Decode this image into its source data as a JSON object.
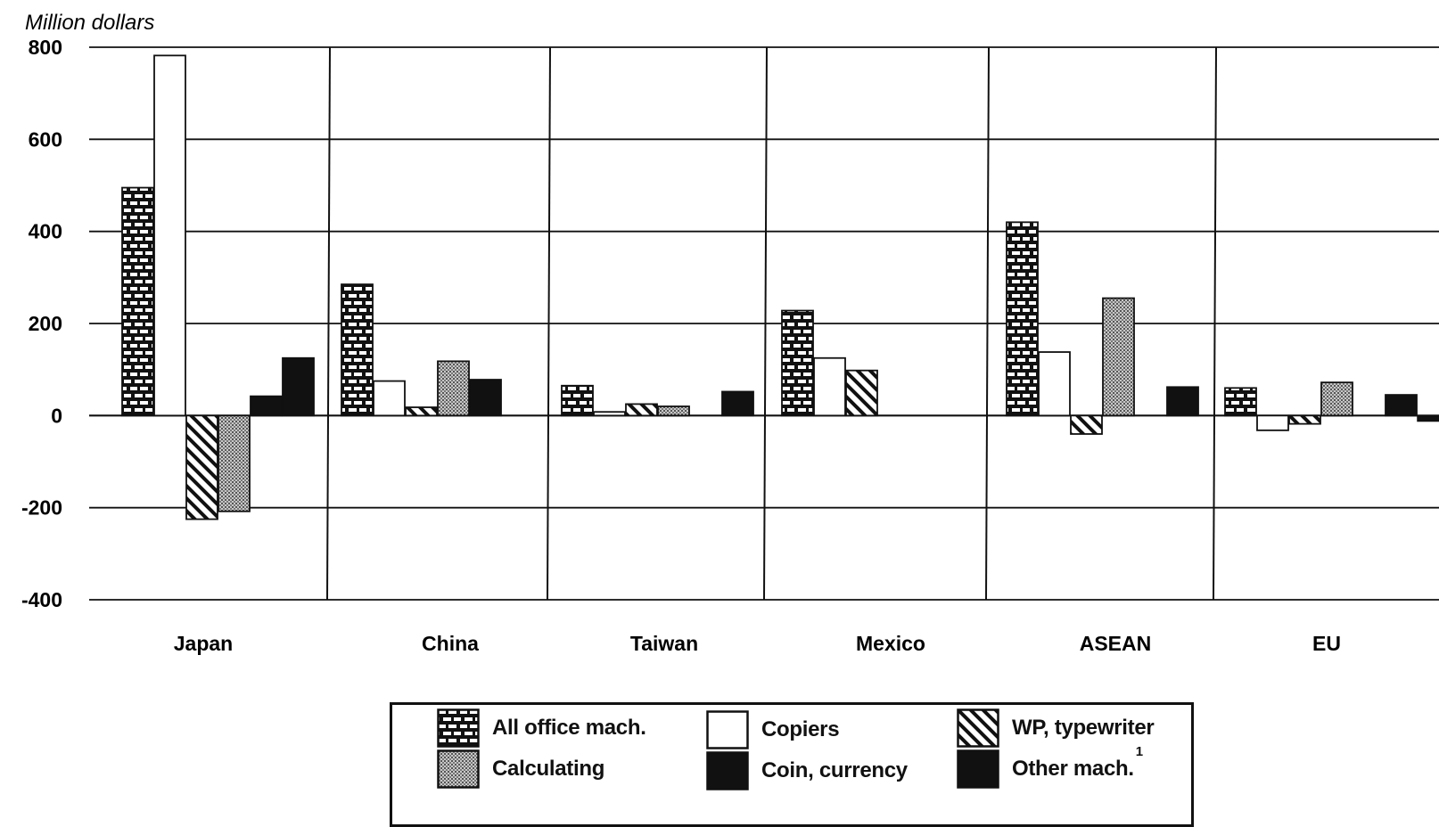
{
  "chart_data": {
    "type": "bar",
    "ylabel": "Million dollars",
    "ylim": [
      -400,
      800
    ],
    "yticks": [
      "800",
      "600",
      "400",
      "200",
      "0",
      "-200",
      "-400"
    ],
    "ytick_values": [
      800,
      600,
      400,
      200,
      0,
      -200,
      -400
    ],
    "grid": true,
    "legend_position": "bottom",
    "categories": [
      "Japan",
      "China",
      "Taiwan",
      "Mexico",
      "ASEAN",
      "EU"
    ],
    "series": [
      {
        "name": "All office mach.",
        "pattern": "brick",
        "values": [
          495,
          285,
          65,
          228,
          420,
          60
        ]
      },
      {
        "name": "Copiers",
        "pattern": "white",
        "values": [
          782,
          75,
          8,
          125,
          138,
          -32
        ]
      },
      {
        "name": "WP, typewriter",
        "pattern": "hatch",
        "values": [
          -225,
          18,
          25,
          98,
          -40,
          -18
        ]
      },
      {
        "name": "Calculating",
        "pattern": "stipple",
        "values": [
          -208,
          118,
          20,
          0,
          255,
          72
        ]
      },
      {
        "name": "Coin, currency",
        "pattern": "black",
        "values": [
          42,
          78,
          0,
          0,
          0,
          0
        ]
      },
      {
        "name": "Other mach.",
        "pattern": "black",
        "values": [
          125,
          0,
          52,
          0,
          62,
          45
        ]
      }
    ],
    "eu_extra_value": -12,
    "footnote_marker": "1"
  },
  "colors": {
    "ink": "#111111",
    "paper": "#ffffff",
    "stipple": "#9a9a9a"
  },
  "legend": {
    "items": [
      {
        "label": "All office mach.",
        "pattern": "brick"
      },
      {
        "label": "Copiers",
        "pattern": "white"
      },
      {
        "label": "WP, typewriter",
        "pattern": "hatch"
      },
      {
        "label": "Calculating",
        "pattern": "stipple"
      },
      {
        "label": "Coin, currency",
        "pattern": "black"
      },
      {
        "label": "Other mach.",
        "pattern": "black",
        "sup": "1"
      }
    ]
  }
}
